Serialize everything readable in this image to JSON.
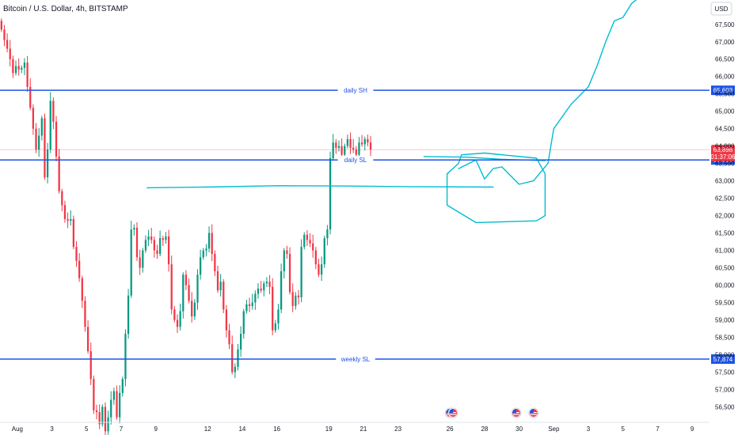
{
  "chart_data": {
    "type": "candlestick",
    "title": "Bitcoin / U.S. Dollar, 4h, BITSTAMP",
    "currency": "USD",
    "ylim": [
      56100,
      68200
    ],
    "y_ticks": [
      "67,500",
      "67,000",
      "66,500",
      "66,000",
      "65,500",
      "65,000",
      "64,500",
      "64,000",
      "63,500",
      "63,000",
      "62,500",
      "62,000",
      "61,500",
      "61,000",
      "60,500",
      "60,000",
      "59,500",
      "59,000",
      "58,500",
      "58,000",
      "57,500",
      "57,000",
      "56,500"
    ],
    "x_domain": [
      "Jul 31 00:00",
      "Sep 10 00:00"
    ],
    "x_ticks": [
      {
        "label": "Aug",
        "date": "Aug 1"
      },
      {
        "label": "3",
        "date": "Aug 3"
      },
      {
        "label": "5",
        "date": "Aug 5"
      },
      {
        "label": "7",
        "date": "Aug 7"
      },
      {
        "label": "9",
        "date": "Aug 9"
      },
      {
        "label": "12",
        "date": "Aug 12"
      },
      {
        "label": "14",
        "date": "Aug 14"
      },
      {
        "label": "16",
        "date": "Aug 16"
      },
      {
        "label": "19",
        "date": "Aug 19"
      },
      {
        "label": "21",
        "date": "Aug 21"
      },
      {
        "label": "23",
        "date": "Aug 23"
      },
      {
        "label": "26",
        "date": "Aug 26"
      },
      {
        "label": "28",
        "date": "Aug 28"
      },
      {
        "label": "30",
        "date": "Aug 30"
      },
      {
        "label": "Sep",
        "date": "Sep 1"
      },
      {
        "label": "3",
        "date": "Sep 3"
      },
      {
        "label": "5",
        "date": "Sep 5"
      },
      {
        "label": "7",
        "date": "Sep 7"
      },
      {
        "label": "9",
        "date": "Sep 9"
      }
    ],
    "candle_closes": [
      67350,
      67050,
      66800,
      66500,
      66100,
      66300,
      66200,
      66250,
      66400,
      65700,
      65100,
      64500,
      63900,
      64300,
      64800,
      63100,
      63900,
      65300,
      64700,
      63700,
      62700,
      62300,
      61900,
      61850,
      61900,
      61100,
      60700,
      60200,
      59550,
      58800,
      58100,
      57300,
      56400,
      56350,
      56000,
      56500,
      55800,
      56200,
      56700,
      56950,
      56200,
      56900,
      57300,
      58600,
      59700,
      61600,
      61650,
      60800,
      60500,
      61000,
      61300,
      61400,
      61300,
      61000,
      60900,
      61350,
      61300,
      61400,
      60600,
      59300,
      59000,
      58800,
      59250,
      60300,
      60000,
      59550,
      59100,
      59500,
      60300,
      60800,
      61000,
      61050,
      61500,
      60900,
      60400,
      59850,
      60100,
      59300,
      58700,
      58300,
      57500,
      57650,
      58150,
      58600,
      59250,
      59450,
      59400,
      59500,
      59750,
      59900,
      59850,
      60050,
      60100,
      59950,
      58700,
      58900,
      59300,
      60400,
      61000,
      60900,
      59800,
      59400,
      59700,
      59650,
      61100,
      61450,
      61300,
      61200,
      61000,
      60600,
      60300,
      60600,
      61350,
      61600,
      63650,
      64100,
      63950,
      64000,
      63750,
      64000,
      64200,
      63950,
      63900,
      63750,
      64100,
      64050,
      64200,
      64100,
      63900
    ],
    "candle_start": "Jul 31 00:00",
    "candle_interval_hours": 4,
    "current_price": {
      "value": 63898,
      "label": "63,898",
      "countdown": "01:37:06"
    },
    "levels": [
      {
        "name": "daily SH",
        "value": 65603,
        "label": "65,603"
      },
      {
        "name": "daily SL",
        "value": 63600,
        "label": "63,600"
      },
      {
        "name": "weekly SL",
        "value": 57874,
        "label": "57,874"
      }
    ],
    "event_markers": [
      {
        "type": "us-flag",
        "date": "Aug 26 00:00",
        "count": 2
      },
      {
        "type": "us-flag",
        "date": "Aug 29 20:00",
        "count": 1
      },
      {
        "type": "us-flag",
        "date": "Aug 30 20:00",
        "count": 1
      }
    ],
    "drawing_paths": [
      [
        [
          "Aug 8 12:00",
          62800
        ],
        [
          "Aug 12 00:00",
          62820
        ],
        [
          "Aug 16 00:00",
          62860
        ],
        [
          "Aug 20 00:00",
          62850
        ],
        [
          "Aug 24 00:00",
          62830
        ],
        [
          "Aug 28 12:00",
          62820
        ]
      ],
      [
        [
          "Aug 24 12:00",
          63700
        ],
        [
          "Aug 27 00:00",
          63680
        ],
        [
          "Aug 29 00:00",
          63620
        ],
        [
          "Aug 31 12:00",
          63580
        ]
      ],
      [
        [
          "Aug 26 12:00",
          63350
        ],
        [
          "Aug 27 12:00",
          63600
        ],
        [
          "Aug 28 00:00",
          63050
        ],
        [
          "Aug 28 12:00",
          63350
        ],
        [
          "Aug 29 00:00",
          63400
        ],
        [
          "Aug 29 12:00",
          63150
        ],
        [
          "Aug 30 00:00",
          62900
        ],
        [
          "Aug 30 20:00",
          63000
        ],
        [
          "Aug 31 16:00",
          63500
        ],
        [
          "Sep 1 00:00",
          64500
        ],
        [
          "Sep 2 00:00",
          65200
        ],
        [
          "Sep 3 00:00",
          65700
        ],
        [
          "Sep 3 12:00",
          66300
        ],
        [
          "Sep 4 00:00",
          67000
        ],
        [
          "Sep 4 12:00",
          67600
        ],
        [
          "Sep 5 00:00",
          67700
        ],
        [
          "Sep 5 12:00",
          68100
        ],
        [
          "Sep 6 00:00",
          68300
        ]
      ],
      [
        [
          "Aug 26 12:00",
          63500
        ],
        [
          "Aug 25 20:00",
          63200
        ],
        [
          "Aug 25 20:00",
          62300
        ],
        [
          "Aug 27 12:00",
          61800
        ],
        [
          "Aug 31 00:00",
          61850
        ],
        [
          "Aug 31 12:00",
          62000
        ],
        [
          "Aug 31 12:00",
          63200
        ],
        [
          "Aug 31 00:00",
          63650
        ],
        [
          "Aug 28 00:00",
          63800
        ],
        [
          "Aug 26 16:00",
          63750
        ],
        [
          "Aug 26 12:00",
          63500
        ]
      ]
    ],
    "colors": {
      "up": "#089981",
      "down": "#f23645",
      "level": "#1e53e5",
      "drawing": "#00bcd4",
      "price_badge": "#f23645"
    },
    "grid": false
  }
}
